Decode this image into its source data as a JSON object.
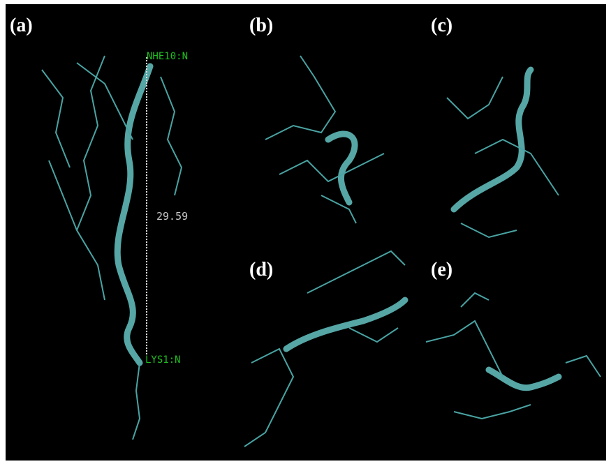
{
  "panels": [
    {
      "label": "(a)",
      "annotations": [
        "NHE10:N",
        "LYS1:N"
      ],
      "distance": "29.59"
    },
    {
      "label": "(b)"
    },
    {
      "label": "(c)"
    },
    {
      "label": "(d)"
    },
    {
      "label": "(e)"
    }
  ]
}
